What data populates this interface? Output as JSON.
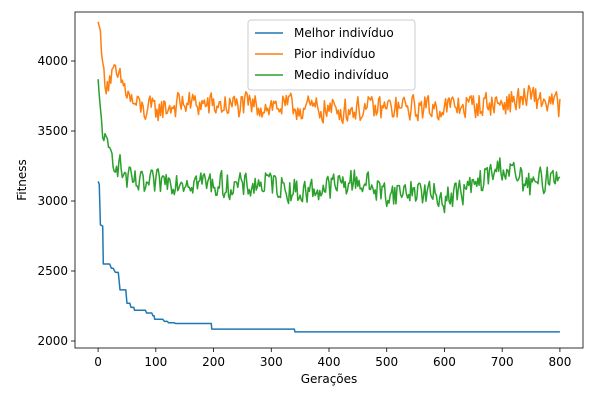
{
  "chart_data": {
    "type": "line",
    "title": "",
    "xlabel": "Gerações",
    "ylabel": "Fitness",
    "xlim": [
      -40,
      840
    ],
    "ylim": [
      1950,
      4350
    ],
    "xticks": [
      0,
      100,
      200,
      300,
      400,
      500,
      600,
      700,
      800
    ],
    "yticks": [
      2000,
      2500,
      3000,
      3500,
      4000
    ],
    "grid": false,
    "legend_position": "top-center",
    "series": [
      {
        "name": "Melhor indivíduo",
        "color": "#1f77b4",
        "kind": "step",
        "points": [
          [
            0,
            3140
          ],
          [
            2,
            3120
          ],
          [
            4,
            2830
          ],
          [
            8,
            2820
          ],
          [
            9,
            2550
          ],
          [
            20,
            2550
          ],
          [
            23,
            2520
          ],
          [
            26,
            2520
          ],
          [
            30,
            2490
          ],
          [
            35,
            2490
          ],
          [
            38,
            2365
          ],
          [
            48,
            2365
          ],
          [
            50,
            2270
          ],
          [
            55,
            2270
          ],
          [
            57,
            2240
          ],
          [
            62,
            2240
          ],
          [
            63,
            2220
          ],
          [
            82,
            2220
          ],
          [
            84,
            2200
          ],
          [
            93,
            2200
          ],
          [
            95,
            2180
          ],
          [
            97,
            2180
          ],
          [
            98,
            2155
          ],
          [
            112,
            2155
          ],
          [
            115,
            2140
          ],
          [
            120,
            2140
          ],
          [
            122,
            2130
          ],
          [
            132,
            2130
          ],
          [
            134,
            2125
          ],
          [
            196,
            2125
          ],
          [
            197,
            2085
          ],
          [
            340,
            2085
          ],
          [
            341,
            2065
          ],
          [
            800,
            2065
          ]
        ]
      },
      {
        "name": "Pior indivíduo",
        "color": "#ff7f0e",
        "kind": "noisy",
        "anchors": [
          [
            0,
            4280
          ],
          [
            5,
            4200
          ],
          [
            10,
            3900
          ],
          [
            15,
            3850
          ],
          [
            25,
            3900
          ],
          [
            40,
            3850
          ],
          [
            60,
            3700
          ],
          [
            80,
            3650
          ],
          [
            100,
            3650
          ],
          [
            150,
            3700
          ],
          [
            200,
            3680
          ],
          [
            300,
            3680
          ],
          [
            400,
            3650
          ],
          [
            500,
            3660
          ],
          [
            600,
            3670
          ],
          [
            700,
            3700
          ],
          [
            750,
            3740
          ],
          [
            800,
            3680
          ]
        ],
        "noise": 115,
        "min": 3270,
        "max": 4050
      },
      {
        "name": "Medio indivíduo",
        "color": "#2ca02c",
        "kind": "noisy",
        "anchors": [
          [
            0,
            3870
          ],
          [
            3,
            3700
          ],
          [
            7,
            3550
          ],
          [
            15,
            3350
          ],
          [
            30,
            3300
          ],
          [
            50,
            3150
          ],
          [
            80,
            3100
          ],
          [
            120,
            3150
          ],
          [
            160,
            3150
          ],
          [
            200,
            3120
          ],
          [
            250,
            3100
          ],
          [
            300,
            3130
          ],
          [
            350,
            3060
          ],
          [
            400,
            3100
          ],
          [
            450,
            3150
          ],
          [
            500,
            3050
          ],
          [
            550,
            3080
          ],
          [
            600,
            3020
          ],
          [
            650,
            3100
          ],
          [
            700,
            3250
          ],
          [
            750,
            3100
          ],
          [
            800,
            3220
          ]
        ],
        "noise": 120,
        "min": 2680,
        "max": 3590
      }
    ]
  }
}
